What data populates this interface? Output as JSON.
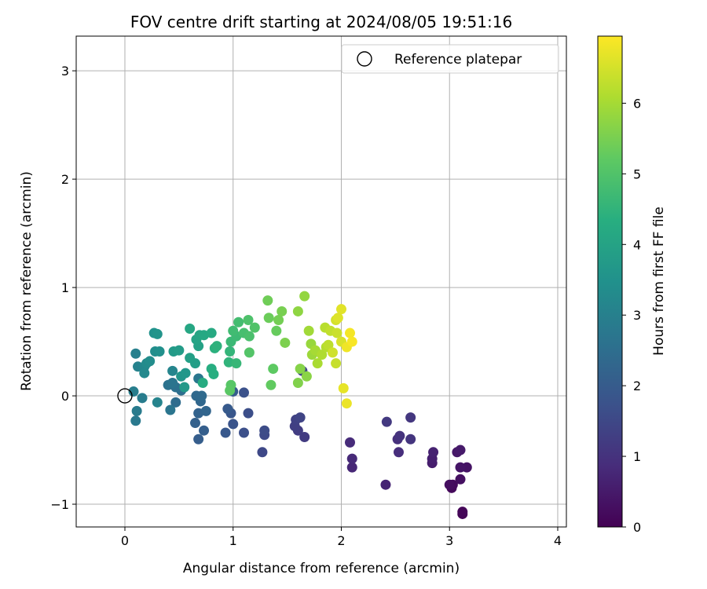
{
  "chart_data": {
    "type": "scatter",
    "title": "FOV centre drift starting at 2024/08/05 19:51:16",
    "xlabel": "Angular distance from reference (arcmin)",
    "ylabel": "Rotation from reference (arcmin)",
    "xlim": [
      -0.45,
      4.08
    ],
    "ylim": [
      -1.21,
      3.32
    ],
    "x_ticks": [
      0,
      1,
      2,
      3,
      4
    ],
    "x_tick_labels": [
      "0",
      "1",
      "2",
      "3",
      "4"
    ],
    "y_ticks": [
      -1,
      0,
      1,
      2,
      3
    ],
    "y_tick_labels": [
      "−1",
      "0",
      "1",
      "2",
      "3"
    ],
    "grid": true,
    "legend": {
      "position": "top-right",
      "entries": [
        "Reference platepar"
      ]
    },
    "reference_point": {
      "x": 0,
      "y": 0,
      "label": "Reference platepar"
    },
    "colorbar": {
      "label": "Hours from first FF file",
      "min": 0,
      "max": 6.95,
      "ticks": [
        0,
        1,
        2,
        3,
        4,
        5,
        6
      ],
      "tick_labels": [
        "0",
        "1",
        "2",
        "3",
        "4",
        "5",
        "6"
      ],
      "colormap": "viridis"
    },
    "series": [
      {
        "points": [
          [
            3.12,
            -1.09,
            0.05
          ],
          [
            3.12,
            -1.07,
            0.1
          ],
          [
            3.02,
            -0.85,
            0.15
          ],
          [
            3.03,
            -0.82,
            0.2
          ],
          [
            3.0,
            -0.82,
            0.25
          ],
          [
            3.1,
            -0.77,
            0.3
          ],
          [
            3.16,
            -0.66,
            0.35
          ],
          [
            3.1,
            -0.66,
            0.4
          ],
          [
            3.07,
            -0.52,
            0.45
          ],
          [
            3.1,
            -0.5,
            0.5
          ],
          [
            2.84,
            -0.62,
            0.55
          ],
          [
            2.84,
            -0.58,
            0.6
          ],
          [
            2.85,
            -0.52,
            0.65
          ],
          [
            2.41,
            -0.82,
            0.7
          ],
          [
            2.1,
            -0.66,
            0.75
          ],
          [
            2.1,
            -0.58,
            0.8
          ],
          [
            2.08,
            -0.43,
            0.85
          ],
          [
            2.53,
            -0.52,
            0.9
          ],
          [
            2.52,
            -0.4,
            0.95
          ],
          [
            2.54,
            -0.37,
            1.0
          ],
          [
            2.64,
            -0.4,
            1.05
          ],
          [
            2.64,
            -0.2,
            1.1
          ],
          [
            2.42,
            -0.24,
            1.15
          ],
          [
            1.66,
            -0.38,
            1.2
          ],
          [
            1.6,
            -0.32,
            1.25
          ],
          [
            1.57,
            -0.28,
            1.3
          ],
          [
            1.58,
            -0.22,
            1.35
          ],
          [
            1.62,
            -0.2,
            1.4
          ],
          [
            1.64,
            0.23,
            1.45
          ],
          [
            1.27,
            -0.52,
            1.5
          ],
          [
            1.29,
            -0.36,
            1.55
          ],
          [
            1.29,
            -0.32,
            1.6
          ],
          [
            1.14,
            -0.16,
            1.65
          ],
          [
            1.1,
            -0.34,
            1.7
          ],
          [
            1.1,
            0.03,
            1.75
          ],
          [
            1.0,
            -0.26,
            1.8
          ],
          [
            0.98,
            -0.16,
            1.85
          ],
          [
            0.93,
            -0.34,
            1.9
          ],
          [
            0.95,
            -0.12,
            1.95
          ],
          [
            1.0,
            0.04,
            2.0
          ],
          [
            0.68,
            -0.4,
            2.05
          ],
          [
            0.73,
            -0.32,
            2.1
          ],
          [
            0.65,
            -0.25,
            2.15
          ],
          [
            0.68,
            -0.16,
            2.2
          ],
          [
            0.75,
            -0.14,
            2.25
          ],
          [
            0.7,
            -0.05,
            2.3
          ],
          [
            0.66,
            0.0,
            2.35
          ],
          [
            0.71,
            0.0,
            2.4
          ],
          [
            0.47,
            -0.06,
            2.45
          ],
          [
            0.52,
            0.05,
            2.5
          ],
          [
            0.47,
            0.08,
            2.55
          ],
          [
            0.4,
            0.1,
            2.6
          ],
          [
            0.44,
            0.12,
            2.65
          ],
          [
            0.42,
            -0.13,
            2.7
          ],
          [
            0.68,
            0.16,
            2.75
          ],
          [
            0.1,
            -0.23,
            2.8
          ],
          [
            0.11,
            -0.14,
            2.85
          ],
          [
            0.16,
            -0.02,
            2.9
          ],
          [
            0.08,
            0.04,
            2.95
          ],
          [
            0.1,
            0.39,
            3.0
          ],
          [
            0.12,
            0.27,
            3.05
          ],
          [
            0.3,
            -0.06,
            3.1
          ],
          [
            0.44,
            0.23,
            3.15
          ],
          [
            0.18,
            0.27,
            3.2
          ],
          [
            0.18,
            0.21,
            3.25
          ],
          [
            0.2,
            0.3,
            3.3
          ],
          [
            0.23,
            0.32,
            3.35
          ],
          [
            0.28,
            0.41,
            3.4
          ],
          [
            0.32,
            0.41,
            3.45
          ],
          [
            0.27,
            0.58,
            3.5
          ],
          [
            0.3,
            0.57,
            3.55
          ],
          [
            0.52,
            0.18,
            3.6
          ],
          [
            0.56,
            0.21,
            3.65
          ],
          [
            0.55,
            0.08,
            3.7
          ],
          [
            0.45,
            0.41,
            3.75
          ],
          [
            0.5,
            0.42,
            3.8
          ],
          [
            0.65,
            0.3,
            3.85
          ],
          [
            0.6,
            0.35,
            3.9
          ],
          [
            0.68,
            0.46,
            3.95
          ],
          [
            0.66,
            0.52,
            4.0
          ],
          [
            0.69,
            0.56,
            4.05
          ],
          [
            0.6,
            0.62,
            4.1
          ],
          [
            0.73,
            0.56,
            4.15
          ],
          [
            0.8,
            0.58,
            4.2
          ],
          [
            0.72,
            0.12,
            4.25
          ],
          [
            0.8,
            0.25,
            4.3
          ],
          [
            0.82,
            0.2,
            4.35
          ],
          [
            0.83,
            0.44,
            4.4
          ],
          [
            0.85,
            0.46,
            4.45
          ],
          [
            0.96,
            0.31,
            4.5
          ],
          [
            0.97,
            0.41,
            4.55
          ],
          [
            1.03,
            0.3,
            4.6
          ],
          [
            0.98,
            0.5,
            4.65
          ],
          [
            1.03,
            0.55,
            4.7
          ],
          [
            1.0,
            0.6,
            4.75
          ],
          [
            1.05,
            0.68,
            4.8
          ],
          [
            1.1,
            0.58,
            4.85
          ],
          [
            1.15,
            0.55,
            4.9
          ],
          [
            1.14,
            0.7,
            4.95
          ],
          [
            1.2,
            0.63,
            5.0
          ],
          [
            1.15,
            0.4,
            5.05
          ],
          [
            0.98,
            0.1,
            5.1
          ],
          [
            0.97,
            0.05,
            5.15
          ],
          [
            1.37,
            0.25,
            5.2
          ],
          [
            1.35,
            0.1,
            5.25
          ],
          [
            1.4,
            0.6,
            5.3
          ],
          [
            1.33,
            0.72,
            5.35
          ],
          [
            1.32,
            0.88,
            5.4
          ],
          [
            1.42,
            0.7,
            5.45
          ],
          [
            1.45,
            0.78,
            5.5
          ],
          [
            1.48,
            0.49,
            5.55
          ],
          [
            1.6,
            0.12,
            5.6
          ],
          [
            1.62,
            0.25,
            5.65
          ],
          [
            1.68,
            0.18,
            5.7
          ],
          [
            1.6,
            0.78,
            5.75
          ],
          [
            1.66,
            0.92,
            5.8
          ],
          [
            1.72,
            0.48,
            5.85
          ],
          [
            1.73,
            0.38,
            5.9
          ],
          [
            1.7,
            0.6,
            5.95
          ],
          [
            1.76,
            0.42,
            6.0
          ],
          [
            1.78,
            0.3,
            6.05
          ],
          [
            1.82,
            0.38,
            6.1
          ],
          [
            1.86,
            0.45,
            6.15
          ],
          [
            1.85,
            0.63,
            6.2
          ],
          [
            1.88,
            0.47,
            6.25
          ],
          [
            1.9,
            0.6,
            6.3
          ],
          [
            1.95,
            0.3,
            6.35
          ],
          [
            1.96,
            0.58,
            6.4
          ],
          [
            1.92,
            0.4,
            6.45
          ],
          [
            1.95,
            0.7,
            6.5
          ],
          [
            2.0,
            0.5,
            6.55
          ],
          [
            1.97,
            0.72,
            6.6
          ],
          [
            2.0,
            0.8,
            6.65
          ],
          [
            2.02,
            0.07,
            6.7
          ],
          [
            2.05,
            -0.07,
            6.75
          ],
          [
            2.05,
            0.45,
            6.8
          ],
          [
            2.08,
            0.58,
            6.85
          ],
          [
            2.1,
            0.5,
            6.9
          ]
        ]
      }
    ]
  }
}
